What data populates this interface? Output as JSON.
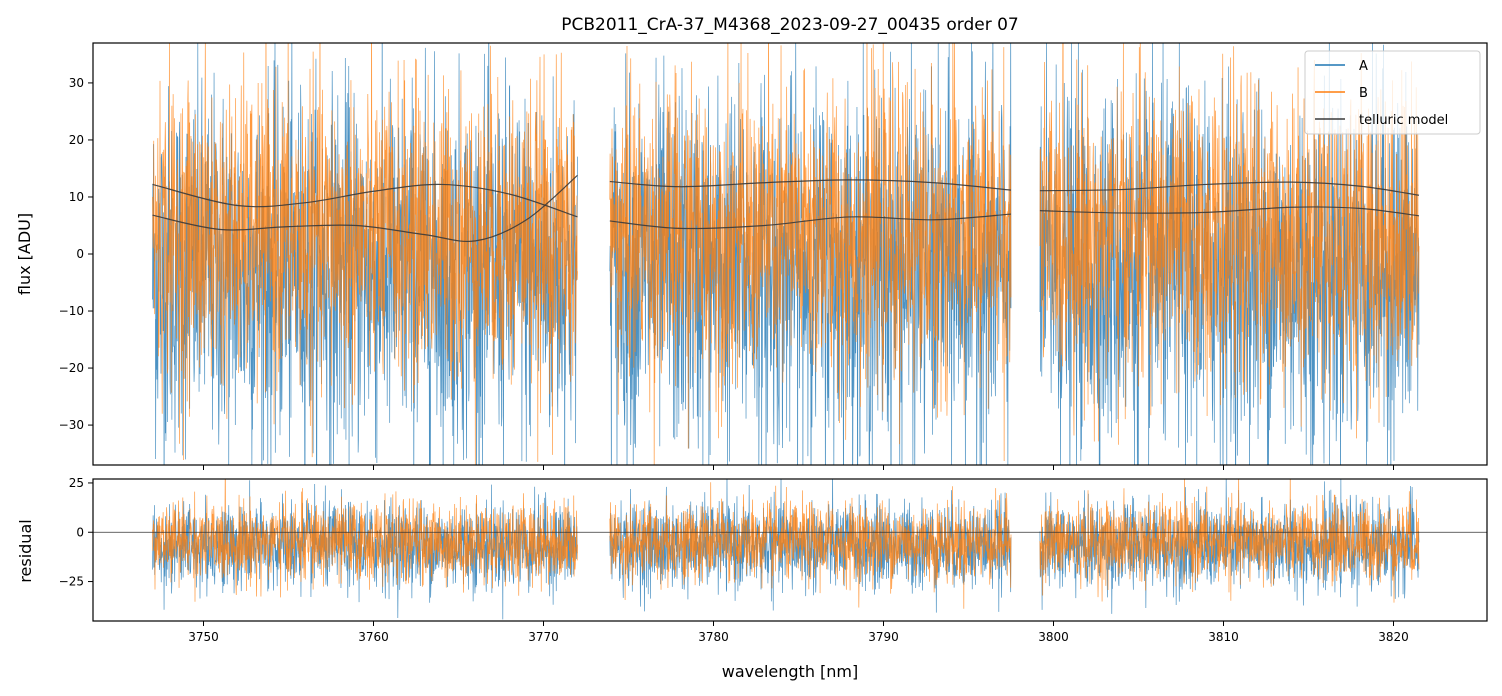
{
  "chart_data": [
    {
      "type": "line",
      "panel": "main",
      "title": "PCB2011_CrA-37_M4368_2023-09-27_00435  order 07",
      "xlabel": "",
      "ylabel": "flux [ADU]",
      "xlim": [
        3743.5,
        3825.5
      ],
      "ylim": [
        -37,
        37
      ],
      "yticks": [
        -30,
        -20,
        -10,
        0,
        10,
        20,
        30
      ],
      "ytick_labels": [
        "−30",
        "−20",
        "−10",
        "0",
        "10",
        "20",
        "30"
      ],
      "segments": [
        [
          3747.0,
          3772.0
        ],
        [
          3773.9,
          3797.5
        ],
        [
          3799.2,
          3821.5
        ]
      ],
      "series": [
        {
          "name": "A",
          "color": "#1f77b4",
          "kind": "noise",
          "center": -3,
          "spread": 16,
          "opacity": 0.8
        },
        {
          "name": "B",
          "color": "#ff7f0e",
          "kind": "noise",
          "center": 3,
          "spread": 13,
          "opacity": 0.8
        },
        {
          "name": "telluric model",
          "color": "#3a3a3a",
          "kind": "smooth",
          "curves": [
            {
              "x": [
                3747,
                3752,
                3756,
                3760,
                3764,
                3768,
                3772
              ],
              "y": [
                12.2,
                8.5,
                9.0,
                11.0,
                12.2,
                10.5,
                6.5
              ]
            },
            {
              "x": [
                3747,
                3751,
                3755,
                3759,
                3763,
                3766,
                3769,
                3772
              ],
              "y": [
                6.8,
                4.3,
                4.8,
                5.0,
                3.4,
                2.3,
                6.0,
                13.8
              ]
            },
            {
              "x": [
                3773.9,
                3778,
                3783,
                3788,
                3793,
                3797.5
              ],
              "y": [
                12.7,
                11.8,
                12.5,
                13.0,
                12.5,
                11.2
              ]
            },
            {
              "x": [
                3773.9,
                3778,
                3783,
                3788,
                3793,
                3797.5
              ],
              "y": [
                5.8,
                4.5,
                5.0,
                6.5,
                6.0,
                7.0
              ]
            },
            {
              "x": [
                3799.2,
                3804,
                3809,
                3814,
                3818,
                3821.5
              ],
              "y": [
                11.1,
                11.3,
                12.2,
                12.6,
                11.9,
                10.3
              ]
            },
            {
              "x": [
                3799.2,
                3804,
                3809,
                3814,
                3818,
                3821.5
              ],
              "y": [
                7.6,
                7.2,
                7.3,
                8.2,
                8.0,
                6.7
              ]
            }
          ]
        }
      ],
      "legend_position": "upper right"
    },
    {
      "type": "line",
      "panel": "residual",
      "xlabel": "wavelength [nm]",
      "ylabel": "residual",
      "xlim": [
        3743.5,
        3825.5
      ],
      "ylim": [
        -45,
        27
      ],
      "xticks": [
        3750,
        3760,
        3770,
        3780,
        3790,
        3800,
        3810,
        3820
      ],
      "xtick_labels": [
        "3750",
        "3760",
        "3770",
        "3780",
        "3790",
        "3800",
        "3810",
        "3820"
      ],
      "yticks": [
        -25,
        0,
        25
      ],
      "ytick_labels": [
        "−25",
        "0",
        "25"
      ],
      "zero_line": 0,
      "series": [
        {
          "name": "A",
          "color": "#1f77b4",
          "kind": "noise",
          "center": -7,
          "spread": 11,
          "opacity": 0.8
        },
        {
          "name": "B",
          "color": "#ff7f0e",
          "kind": "noise",
          "center": -5,
          "spread": 10,
          "opacity": 0.8
        }
      ]
    }
  ]
}
